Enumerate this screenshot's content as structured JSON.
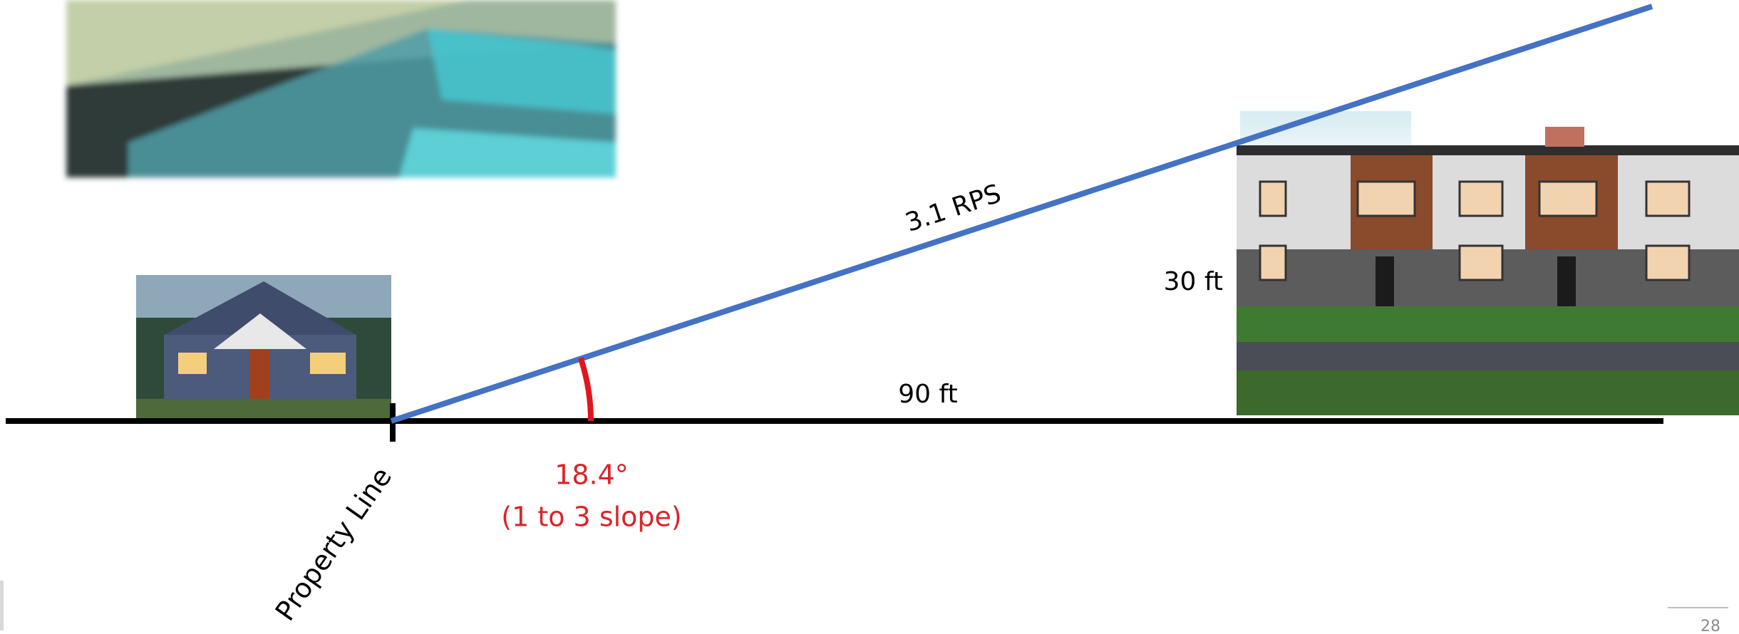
{
  "labels": {
    "hypotenuse": "3.1 RPS",
    "height": "30 ft",
    "distance": "90 ft",
    "angle": "18.4°",
    "slope": "(1 to 3 slope)",
    "property_line": "Property Line"
  },
  "page_number": "28"
}
